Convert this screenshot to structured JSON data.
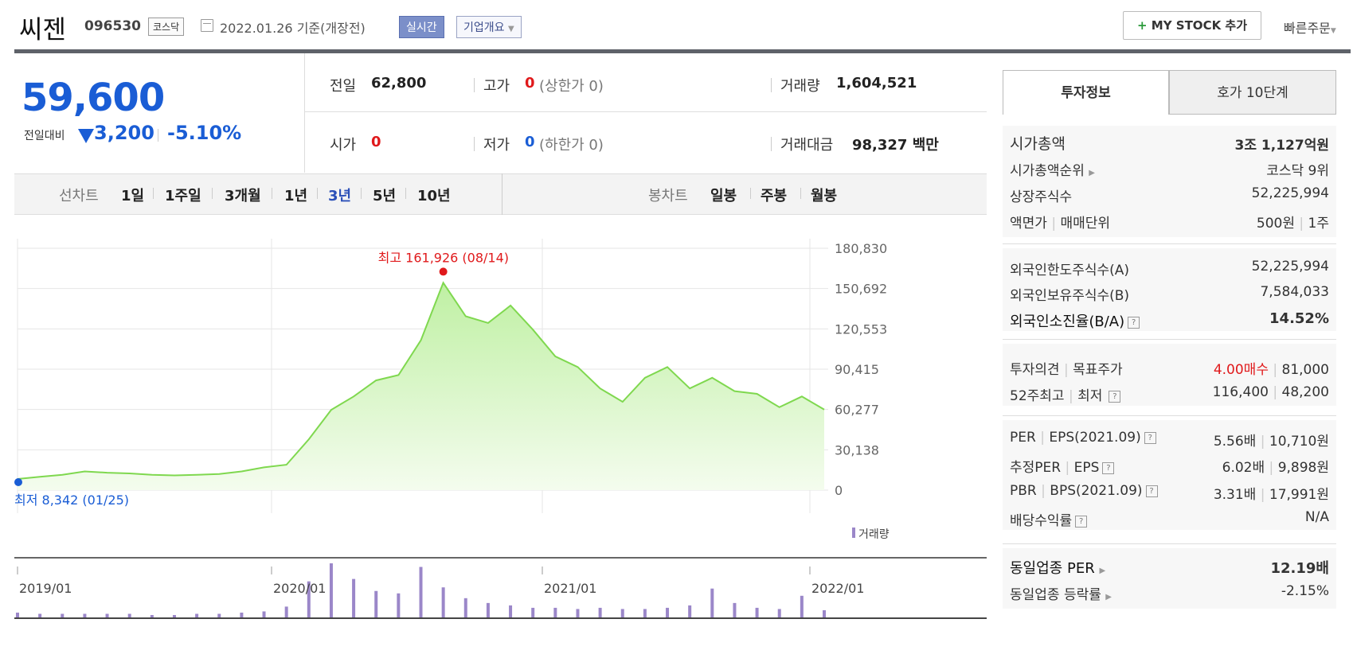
{
  "header": {
    "name": "씨젠",
    "code": "096530",
    "market": "코스닥",
    "date": "2022.01.26 기준(개장전)",
    "realtime": "실시간",
    "corp_info": "기업개요",
    "mystock_plus": "+",
    "mystock": "MY STOCK 추가",
    "quick_order": "빠른주문"
  },
  "quote": {
    "price": "59,600",
    "diff_label": "전일대비",
    "diff": "3,200",
    "diff_pct": "-5.10%",
    "prev_label": "전일",
    "prev": "62,800",
    "high_label": "고가",
    "high": "0",
    "high_limit": "(상한가 0)",
    "volume_label": "거래량",
    "volume": "1,604,521",
    "open_label": "시가",
    "open": "0",
    "low_label": "저가",
    "low": "0",
    "low_limit": "(하한가 0)",
    "amount_label": "거래대금",
    "amount": "98,327",
    "amount_unit": "백만"
  },
  "chart_tabs": {
    "line_label": "선차트",
    "line": [
      "1일",
      "1주일",
      "3개월",
      "1년",
      "3년",
      "5년",
      "10년"
    ],
    "selected": "3년",
    "candle_label": "봉차트",
    "candle": [
      "일봉",
      "주봉",
      "월봉"
    ]
  },
  "chart_data": {
    "type": "area",
    "title": "",
    "x_ticks": [
      "2019/01",
      "2020/01",
      "2021/01",
      "2022/01"
    ],
    "y_ticks": [
      "180,830",
      "150,692",
      "120,553",
      "90,415",
      "60,277",
      "30,138",
      "0"
    ],
    "ylim": [
      0,
      180830
    ],
    "max_label": "최고 161,926 (08/14)",
    "min_label": "최저 8,342 (01/25)",
    "volume_legend": "거래량",
    "colors": {
      "line": "#7fd84f",
      "fill_top": "#bff0a3",
      "fill_bottom": "#f4fcee",
      "volume": "#9b87c9",
      "max": "#e0191b",
      "min": "#1a5dd5"
    },
    "x": [
      "2019-01",
      "2019-02",
      "2019-03",
      "2019-04",
      "2019-05",
      "2019-06",
      "2019-07",
      "2019-08",
      "2019-09",
      "2019-10",
      "2019-11",
      "2019-12",
      "2020-01",
      "2020-02",
      "2020-03",
      "2020-04",
      "2020-05",
      "2020-06",
      "2020-07",
      "2020-08",
      "2020-09",
      "2020-10",
      "2020-11",
      "2020-12",
      "2021-01",
      "2021-02",
      "2021-03",
      "2021-04",
      "2021-05",
      "2021-06",
      "2021-07",
      "2021-08",
      "2021-09",
      "2021-10",
      "2021-11",
      "2021-12",
      "2022-01"
    ],
    "series": [
      {
        "values": [
          8342,
          10000,
          11500,
          14000,
          13000,
          12500,
          11500,
          11000,
          11500,
          12000,
          14000,
          17000,
          19000,
          38000,
          60000,
          70000,
          82000,
          86000,
          112000,
          155000,
          130000,
          125000,
          138000,
          120000,
          100000,
          92000,
          76000,
          66000,
          84000,
          92000,
          76000,
          84000,
          74000,
          72000,
          62000,
          70000,
          60277
        ]
      }
    ],
    "volume": [
      4,
      3,
      3,
      3,
      3,
      3,
      2,
      2,
      3,
      3,
      4,
      5,
      9,
      30,
      45,
      32,
      22,
      20,
      42,
      25,
      16,
      12,
      10,
      8,
      8,
      7,
      8,
      7,
      7,
      8,
      10,
      24,
      12,
      8,
      7,
      18,
      6
    ]
  },
  "side": {
    "tab1": "투자정보",
    "tab2": "호가 10단계",
    "mcap_label": "시가총액",
    "mcap": "3조 1,127억원",
    "mcap_rank_label": "시가총액순위",
    "mcap_rank": "코스닥 9위",
    "shares_label": "상장주식수",
    "shares": "52,225,994",
    "par_label": "액면가",
    "unit_label": "매매단위",
    "par": "500원",
    "unit": "1주",
    "foreign_limit_label": "외국인한도주식수(A)",
    "foreign_limit": "52,225,994",
    "foreign_hold_label": "외국인보유주식수(B)",
    "foreign_hold": "7,584,033",
    "foreign_ratio_label": "외국인소진율(B/A)",
    "foreign_ratio": "14.52%",
    "opinion_label": "투자의견",
    "target_label": "목표주가",
    "opinion": "4.00매수",
    "target": "81,000",
    "w52_label": "52주최고",
    "w52low_label": "최저",
    "w52_high": "116,400",
    "w52_low": "48,200",
    "per_label": "PER",
    "eps_label": "EPS(2021.09)",
    "per": "5.56배",
    "eps": "10,710원",
    "eper_label": "추정PER",
    "eeps_label": "EPS",
    "eper": "6.02배",
    "eeps": "9,898원",
    "pbr_label": "PBR",
    "bps_label": "BPS(2021.09)",
    "pbr": "3.31배",
    "bps": "17,991원",
    "div_label": "배당수익률",
    "div": "N/A",
    "ind_per_label": "동일업종 PER",
    "ind_per": "12.19배",
    "ind_chg_label": "동일업종 등락률",
    "ind_chg": "-2.15%"
  }
}
